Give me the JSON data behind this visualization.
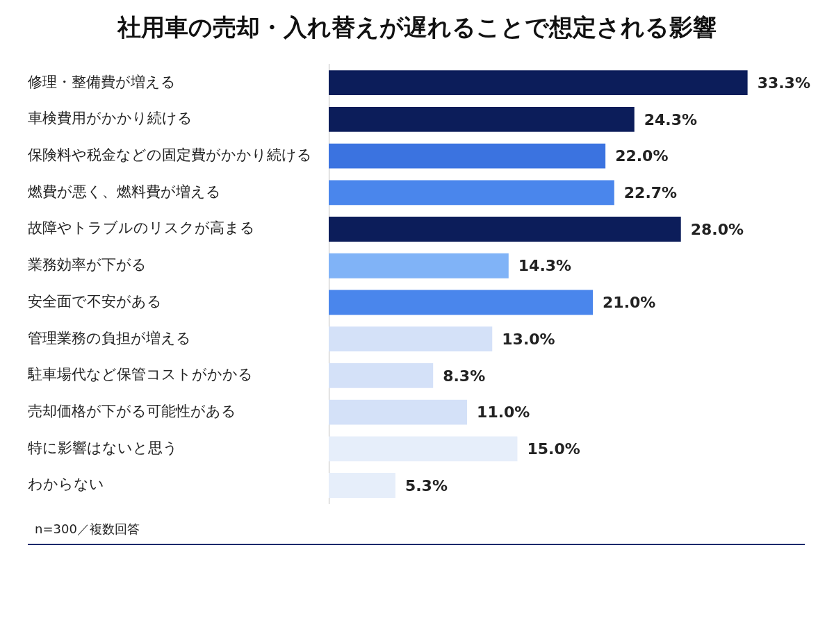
{
  "chart_data": {
    "type": "bar",
    "orientation": "horizontal",
    "title": "社用車の売却・入れ替えが遅れることで想定される影響",
    "categories": [
      "修理・整備費が増える",
      "車検費用がかかり続ける",
      "保険料や税金などの固定費がかかり続ける",
      "燃費が悪く、燃料費が増える",
      "故障やトラブルのリスクが高まる",
      "業務効率が下がる",
      "安全面で不安がある",
      "管理業務の負担が増える",
      "駐車場代など保管コストがかかる",
      "売却価格が下がる可能性がある",
      "特に影響はないと思う",
      "わからない"
    ],
    "values": [
      33.3,
      24.3,
      22.0,
      22.7,
      28.0,
      14.3,
      21.0,
      13.0,
      8.3,
      11.0,
      15.0,
      5.3
    ],
    "value_labels": [
      "33.3%",
      "24.3%",
      "22.0%",
      "22.7%",
      "28.0%",
      "14.3%",
      "21.0%",
      "13.0%",
      "8.3%",
      "11.0%",
      "15.0%",
      "5.3%"
    ],
    "colors": [
      "#0c1d5a",
      "#0c1d5a",
      "#3b73e0",
      "#4a86ec",
      "#0c1d5a",
      "#80b3f7",
      "#4a86ec",
      "#d4e1f8",
      "#d4e1f8",
      "#d4e1f8",
      "#e6eefa",
      "#e6eefa"
    ],
    "annotations": [
      "n=300／複数回答"
    ],
    "legend": false,
    "grid": false
  }
}
